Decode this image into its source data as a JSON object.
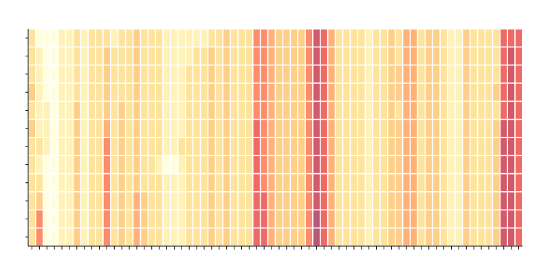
{
  "chart_data": {
    "type": "heatmap",
    "title": "",
    "xlabel": "",
    "ylabel": "",
    "n_rows": 12,
    "n_cols": 66,
    "grid": true,
    "colorscale": [
      "#ffffe0",
      "#fff2b8",
      "#fee39c",
      "#fecf88",
      "#feb27a",
      "#fd8c6c",
      "#ee6a66",
      "#d35a6b",
      "#b8577a"
    ],
    "value_range": [
      0,
      8
    ],
    "x_ticks": 66,
    "y_ticks": 12,
    "value_matrix": [
      [
        2,
        0,
        0,
        0,
        1,
        1,
        2,
        1,
        2,
        2,
        2,
        1,
        2,
        2,
        3,
        2,
        2,
        2,
        1,
        1,
        1,
        1,
        1,
        1,
        2,
        2,
        3,
        2,
        2,
        2,
        5,
        5,
        4,
        3,
        3,
        3,
        3,
        5,
        7,
        6,
        4,
        2,
        2,
        2,
        2,
        1,
        2,
        2,
        3,
        2,
        4,
        4,
        2,
        3,
        3,
        2,
        1,
        1,
        3,
        2,
        2,
        2,
        2,
        6,
        6,
        6
      ],
      [
        2,
        1,
        0,
        0,
        1,
        1,
        2,
        1,
        2,
        2,
        3,
        2,
        2,
        2,
        3,
        2,
        2,
        2,
        1,
        1,
        1,
        1,
        2,
        2,
        3,
        2,
        3,
        2,
        2,
        2,
        5,
        5,
        4,
        3,
        3,
        3,
        3,
        5,
        7,
        6,
        4,
        2,
        2,
        2,
        2,
        1,
        2,
        2,
        3,
        2,
        4,
        4,
        2,
        3,
        3,
        2,
        1,
        1,
        3,
        2,
        2,
        2,
        2,
        6,
        7,
        6
      ],
      [
        2,
        1,
        0,
        0,
        1,
        1,
        2,
        1,
        2,
        2,
        3,
        2,
        2,
        2,
        3,
        2,
        2,
        2,
        1,
        1,
        1,
        2,
        2,
        2,
        3,
        2,
        3,
        2,
        2,
        2,
        5,
        5,
        4,
        3,
        3,
        3,
        3,
        5,
        7,
        6,
        4,
        2,
        2,
        2,
        2,
        1,
        2,
        2,
        3,
        3,
        4,
        4,
        2,
        3,
        3,
        2,
        1,
        1,
        3,
        2,
        2,
        2,
        2,
        6,
        7,
        6
      ],
      [
        3,
        1,
        0,
        0,
        1,
        1,
        2,
        1,
        2,
        2,
        3,
        2,
        2,
        2,
        3,
        2,
        2,
        2,
        1,
        1,
        1,
        2,
        2,
        2,
        3,
        2,
        3,
        2,
        2,
        2,
        5,
        5,
        4,
        3,
        3,
        3,
        3,
        5,
        7,
        6,
        4,
        2,
        2,
        2,
        2,
        1,
        2,
        2,
        3,
        3,
        4,
        4,
        2,
        3,
        3,
        2,
        1,
        1,
        3,
        2,
        2,
        2,
        3,
        6,
        7,
        6
      ],
      [
        2,
        1,
        1,
        0,
        1,
        1,
        3,
        1,
        2,
        2,
        3,
        2,
        3,
        2,
        3,
        2,
        2,
        2,
        1,
        1,
        1,
        2,
        2,
        2,
        3,
        2,
        3,
        2,
        2,
        2,
        5,
        5,
        4,
        3,
        3,
        3,
        3,
        5,
        7,
        6,
        4,
        2,
        2,
        2,
        2,
        1,
        2,
        2,
        3,
        2,
        4,
        4,
        2,
        3,
        3,
        2,
        1,
        1,
        3,
        2,
        2,
        2,
        2,
        6,
        7,
        6
      ],
      [
        3,
        1,
        1,
        0,
        1,
        1,
        3,
        1,
        2,
        2,
        4,
        2,
        3,
        2,
        3,
        2,
        2,
        2,
        1,
        1,
        1,
        2,
        2,
        2,
        3,
        2,
        3,
        2,
        2,
        2,
        6,
        5,
        4,
        3,
        3,
        3,
        3,
        5,
        7,
        6,
        4,
        2,
        2,
        2,
        2,
        1,
        2,
        2,
        3,
        3,
        4,
        4,
        2,
        3,
        3,
        2,
        1,
        1,
        3,
        2,
        2,
        2,
        3,
        7,
        7,
        6
      ],
      [
        2,
        2,
        1,
        0,
        1,
        1,
        3,
        1,
        2,
        2,
        5,
        2,
        3,
        2,
        3,
        2,
        2,
        2,
        1,
        1,
        2,
        2,
        2,
        2,
        3,
        2,
        3,
        2,
        2,
        2,
        6,
        5,
        4,
        3,
        3,
        3,
        3,
        5,
        7,
        6,
        4,
        2,
        2,
        2,
        2,
        1,
        2,
        2,
        3,
        3,
        4,
        4,
        2,
        3,
        3,
        2,
        1,
        1,
        3,
        2,
        2,
        2,
        3,
        7,
        7,
        6
      ],
      [
        2,
        1,
        0,
        0,
        1,
        1,
        3,
        1,
        2,
        2,
        5,
        2,
        3,
        2,
        3,
        2,
        2,
        1,
        0,
        0,
        1,
        2,
        2,
        2,
        3,
        2,
        3,
        2,
        2,
        2,
        6,
        5,
        4,
        3,
        3,
        3,
        3,
        5,
        7,
        6,
        4,
        2,
        2,
        2,
        2,
        1,
        2,
        2,
        3,
        3,
        4,
        4,
        2,
        3,
        3,
        2,
        1,
        1,
        3,
        2,
        2,
        2,
        3,
        7,
        7,
        6
      ],
      [
        2,
        2,
        0,
        0,
        1,
        1,
        3,
        1,
        2,
        2,
        5,
        2,
        3,
        2,
        3,
        2,
        2,
        2,
        1,
        1,
        1,
        2,
        2,
        2,
        3,
        2,
        3,
        2,
        2,
        2,
        6,
        5,
        4,
        3,
        3,
        3,
        3,
        5,
        7,
        6,
        4,
        2,
        2,
        2,
        2,
        1,
        2,
        2,
        3,
        3,
        4,
        4,
        2,
        3,
        3,
        2,
        1,
        1,
        3,
        2,
        2,
        2,
        3,
        7,
        7,
        6
      ],
      [
        2,
        3,
        0,
        0,
        1,
        1,
        3,
        1,
        2,
        2,
        5,
        2,
        3,
        2,
        4,
        3,
        2,
        2,
        1,
        1,
        1,
        2,
        2,
        2,
        3,
        2,
        3,
        2,
        2,
        2,
        6,
        6,
        4,
        3,
        3,
        3,
        3,
        5,
        7,
        6,
        4,
        2,
        2,
        2,
        2,
        1,
        2,
        2,
        3,
        3,
        4,
        4,
        2,
        3,
        3,
        2,
        1,
        1,
        3,
        2,
        2,
        2,
        3,
        7,
        7,
        6
      ],
      [
        2,
        5,
        0,
        0,
        1,
        1,
        3,
        1,
        2,
        2,
        5,
        2,
        3,
        2,
        4,
        3,
        2,
        2,
        1,
        1,
        1,
        2,
        2,
        2,
        3,
        2,
        3,
        2,
        2,
        2,
        6,
        6,
        4,
        3,
        3,
        3,
        3,
        5,
        8,
        6,
        4,
        2,
        2,
        2,
        2,
        1,
        2,
        2,
        3,
        3,
        4,
        4,
        2,
        3,
        3,
        2,
        1,
        1,
        3,
        2,
        2,
        2,
        3,
        7,
        7,
        6
      ],
      [
        2,
        5,
        0,
        0,
        1,
        1,
        3,
        1,
        2,
        2,
        5,
        2,
        3,
        2,
        4,
        3,
        2,
        2,
        1,
        1,
        1,
        2,
        2,
        2,
        3,
        2,
        3,
        2,
        2,
        2,
        6,
        6,
        4,
        3,
        3,
        3,
        3,
        5,
        8,
        6,
        4,
        2,
        2,
        2,
        2,
        1,
        2,
        2,
        3,
        3,
        4,
        4,
        2,
        3,
        3,
        2,
        1,
        1,
        3,
        2,
        2,
        2,
        3,
        7,
        7,
        6
      ]
    ]
  }
}
